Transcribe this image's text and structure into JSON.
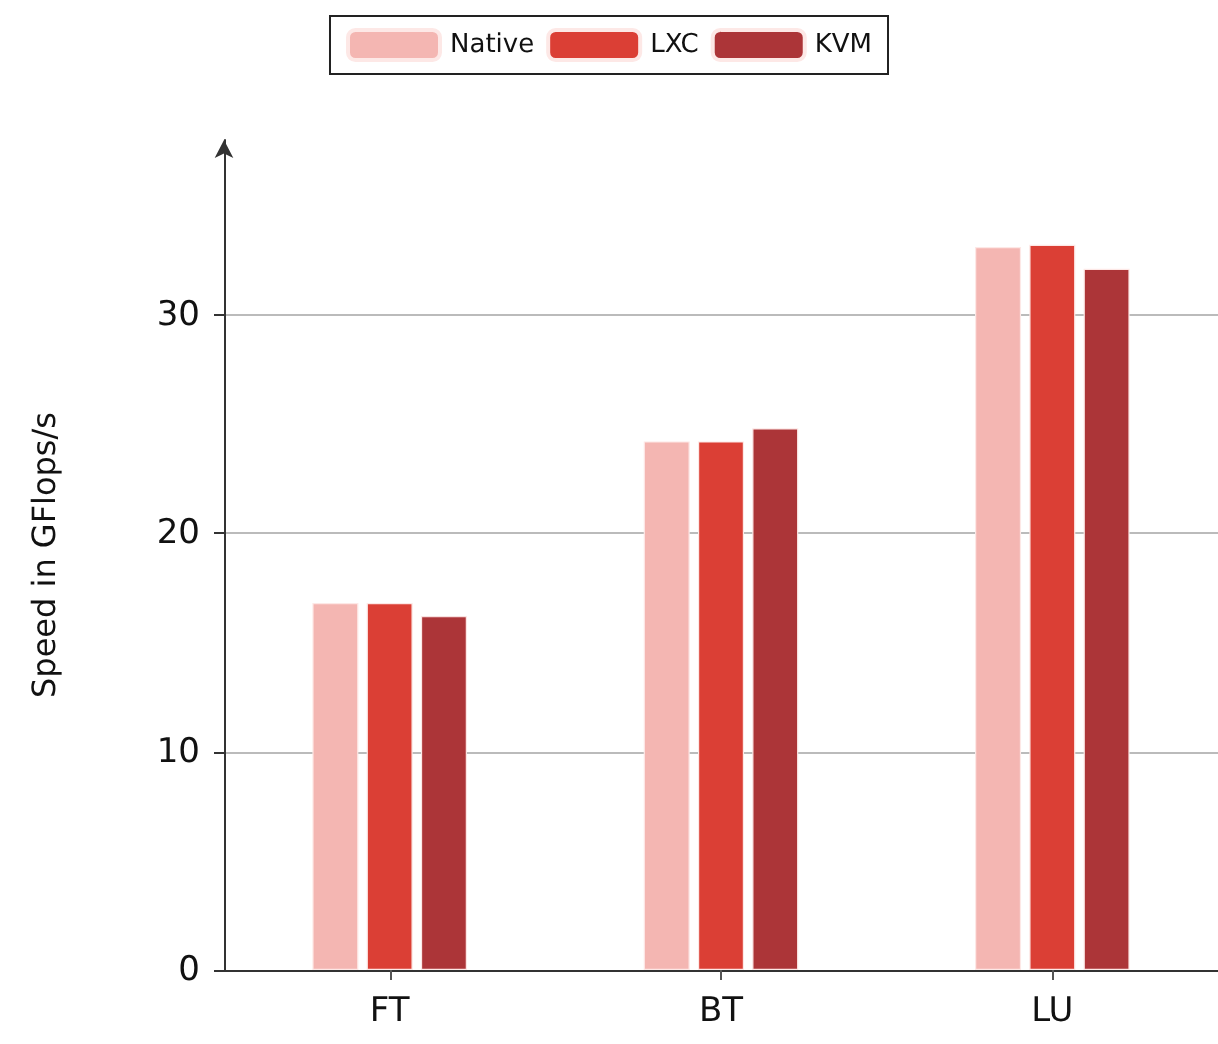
{
  "chart_data": {
    "type": "bar",
    "ylabel": "Speed in GFlops/s",
    "categories": [
      "FT",
      "BT",
      "LU"
    ],
    "series": [
      {
        "name": "Native",
        "color": "#f4b6b2",
        "values": [
          16.8,
          24.2,
          33.1
        ]
      },
      {
        "name": "LXC",
        "color": "#db3f35",
        "values": [
          16.8,
          24.2,
          33.2
        ]
      },
      {
        "name": "KVM",
        "color": "#ac3538",
        "values": [
          16.2,
          24.8,
          32.1
        ]
      }
    ],
    "ylim": [
      0,
      38
    ],
    "yticks": [
      0,
      10,
      20,
      30
    ],
    "grid": "y",
    "legend": "top"
  }
}
